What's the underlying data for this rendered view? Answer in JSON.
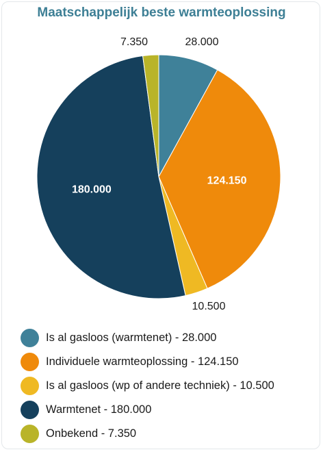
{
  "chart_data": {
    "type": "pie",
    "title": "Maatschappelijk beste warmteoplossing",
    "slices": [
      {
        "name": "Is al gasloos (warmtenet)",
        "value": 28000,
        "label": "28.000",
        "color": "#3f8199",
        "legend": "Is al gasloos (warmtenet) - 28.000"
      },
      {
        "name": "Individuele warmteoplossing",
        "value": 124150,
        "label": "124.150",
        "color": "#ef8a0b",
        "legend": "Individuele warmteoplossing - 124.150"
      },
      {
        "name": "Is al gasloos (wp of andere techniek)",
        "value": 10500,
        "label": "10.500",
        "color": "#efb923",
        "legend": "Is al gasloos (wp of andere techniek) - 10.500"
      },
      {
        "name": "Warmtenet",
        "value": 180000,
        "label": "180.000",
        "color": "#15405c",
        "legend": "Warmtenet - 180.000"
      },
      {
        "name": "Onbekend",
        "value": 7350,
        "label": "7.350",
        "color": "#b9b429",
        "legend": "Onbekend - 7.350"
      }
    ],
    "legend_position": "bottom"
  }
}
